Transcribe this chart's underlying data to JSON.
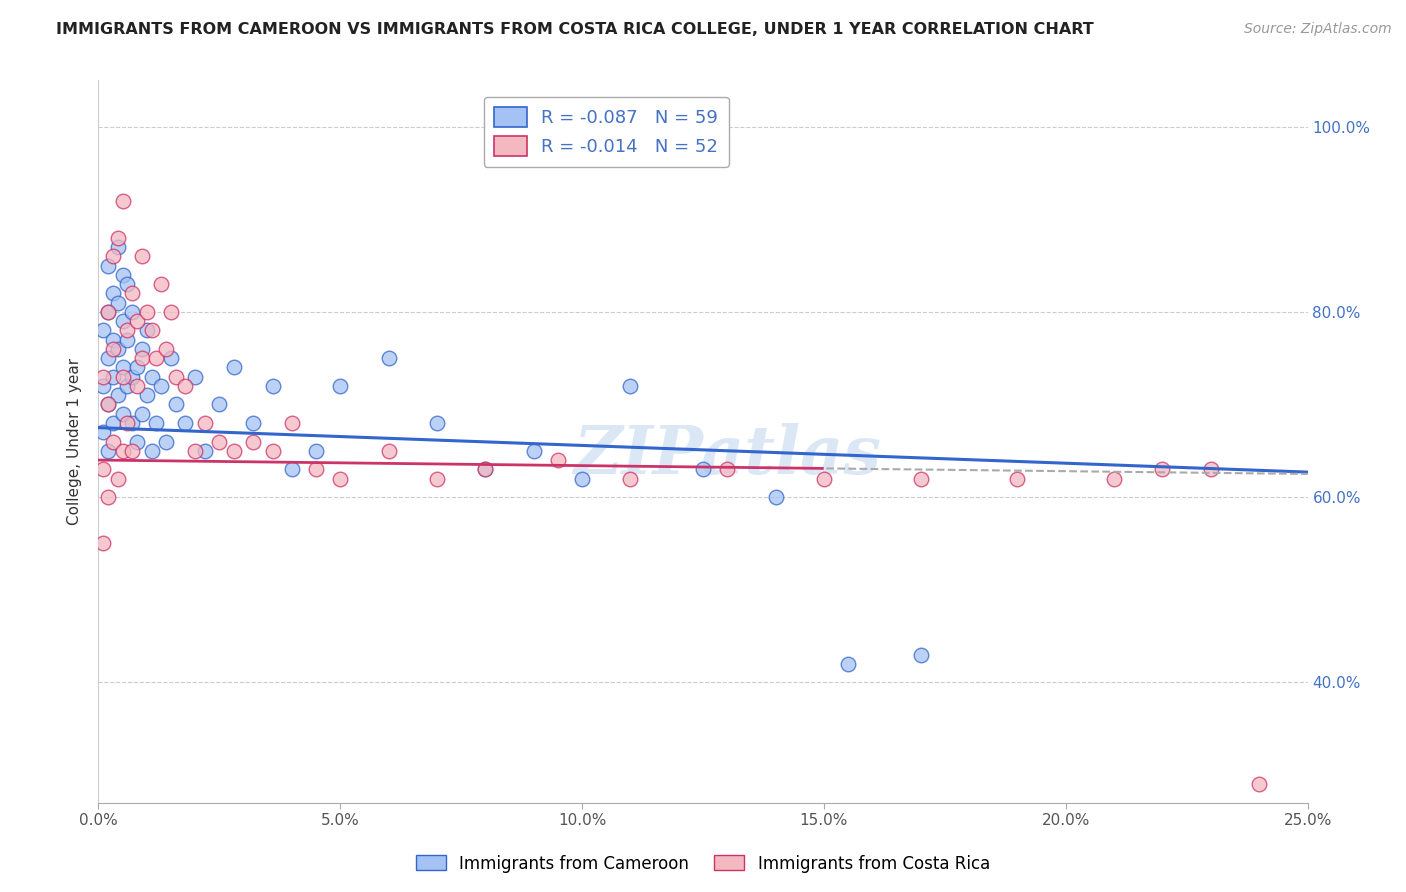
{
  "title": "IMMIGRANTS FROM CAMEROON VS IMMIGRANTS FROM COSTA RICA COLLEGE, UNDER 1 YEAR CORRELATION CHART",
  "source": "Source: ZipAtlas.com",
  "ylabel": "College, Under 1 year",
  "xlim": [
    0.0,
    0.25
  ],
  "ylim": [
    0.27,
    1.05
  ],
  "yticks": [
    0.4,
    0.6,
    0.8,
    1.0
  ],
  "ytick_labels": [
    "40.0%",
    "60.0%",
    "80.0%",
    "100.0%"
  ],
  "xticks": [
    0.0,
    0.05,
    0.1,
    0.15,
    0.2,
    0.25
  ],
  "legend1_label": "R = -0.087   N = 59",
  "legend2_label": "R = -0.014   N = 52",
  "watermark": "ZIPatlas",
  "blue_color": "#a4c2f4",
  "pink_color": "#f4b8c1",
  "trend_blue": "#3366cc",
  "trend_pink": "#cc3366",
  "R_cameroon": -0.087,
  "N_cameroon": 59,
  "R_costarica": -0.014,
  "N_costarica": 52,
  "cam_x": [
    0.001,
    0.001,
    0.001,
    0.002,
    0.002,
    0.002,
    0.002,
    0.002,
    0.003,
    0.003,
    0.003,
    0.003,
    0.004,
    0.004,
    0.004,
    0.004,
    0.005,
    0.005,
    0.005,
    0.005,
    0.006,
    0.006,
    0.006,
    0.007,
    0.007,
    0.007,
    0.008,
    0.008,
    0.009,
    0.009,
    0.01,
    0.01,
    0.011,
    0.011,
    0.012,
    0.013,
    0.014,
    0.015,
    0.016,
    0.018,
    0.02,
    0.022,
    0.025,
    0.028,
    0.032,
    0.036,
    0.04,
    0.045,
    0.05,
    0.06,
    0.07,
    0.08,
    0.09,
    0.1,
    0.11,
    0.125,
    0.14,
    0.155,
    0.17
  ],
  "cam_y": [
    0.67,
    0.72,
    0.78,
    0.65,
    0.7,
    0.75,
    0.8,
    0.85,
    0.68,
    0.73,
    0.77,
    0.82,
    0.71,
    0.76,
    0.81,
    0.87,
    0.69,
    0.74,
    0.79,
    0.84,
    0.72,
    0.77,
    0.83,
    0.68,
    0.73,
    0.8,
    0.66,
    0.74,
    0.69,
    0.76,
    0.71,
    0.78,
    0.65,
    0.73,
    0.68,
    0.72,
    0.66,
    0.75,
    0.7,
    0.68,
    0.73,
    0.65,
    0.7,
    0.74,
    0.68,
    0.72,
    0.63,
    0.65,
    0.72,
    0.75,
    0.68,
    0.63,
    0.65,
    0.62,
    0.72,
    0.63,
    0.6,
    0.42,
    0.43
  ],
  "cr_x": [
    0.001,
    0.001,
    0.001,
    0.002,
    0.002,
    0.002,
    0.003,
    0.003,
    0.003,
    0.004,
    0.004,
    0.005,
    0.005,
    0.005,
    0.006,
    0.006,
    0.007,
    0.007,
    0.008,
    0.008,
    0.009,
    0.009,
    0.01,
    0.011,
    0.012,
    0.013,
    0.014,
    0.015,
    0.016,
    0.018,
    0.02,
    0.022,
    0.025,
    0.028,
    0.032,
    0.036,
    0.04,
    0.045,
    0.05,
    0.06,
    0.07,
    0.08,
    0.095,
    0.11,
    0.13,
    0.15,
    0.17,
    0.19,
    0.21,
    0.22,
    0.23,
    0.24
  ],
  "cr_y": [
    0.55,
    0.63,
    0.73,
    0.6,
    0.7,
    0.8,
    0.66,
    0.76,
    0.86,
    0.62,
    0.88,
    0.65,
    0.73,
    0.92,
    0.68,
    0.78,
    0.65,
    0.82,
    0.72,
    0.79,
    0.75,
    0.86,
    0.8,
    0.78,
    0.75,
    0.83,
    0.76,
    0.8,
    0.73,
    0.72,
    0.65,
    0.68,
    0.66,
    0.65,
    0.66,
    0.65,
    0.68,
    0.63,
    0.62,
    0.65,
    0.62,
    0.63,
    0.64,
    0.62,
    0.63,
    0.62,
    0.62,
    0.62,
    0.62,
    0.63,
    0.63,
    0.29
  ]
}
